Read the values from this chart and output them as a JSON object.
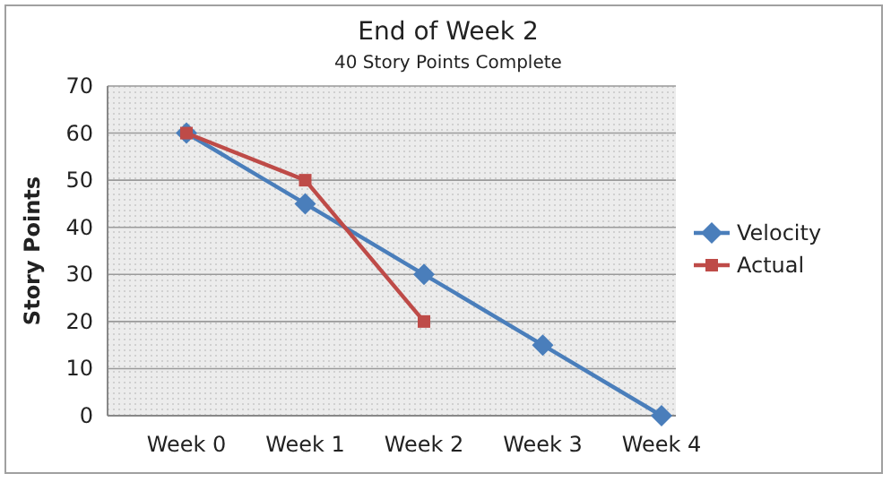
{
  "chart_data": {
    "type": "line",
    "title": "End of Week 2",
    "subtitle": "40 Story Points Complete",
    "ylabel": "Story Points",
    "categories": [
      "Week 0",
      "Week 1",
      "Week 2",
      "Week 3",
      "Week 4"
    ],
    "series": [
      {
        "name": "Velocity",
        "color": "#4a7ebb",
        "marker": "diamond",
        "values": [
          60,
          45,
          30,
          15,
          0
        ]
      },
      {
        "name": "Actual",
        "color": "#be4b48",
        "marker": "square",
        "values": [
          60,
          50,
          20,
          null,
          null
        ]
      }
    ],
    "ylim": [
      0,
      70
    ],
    "yticks": [
      0,
      10,
      20,
      30,
      40,
      50,
      60,
      70
    ],
    "grid": "y",
    "legend": "right",
    "line_style": "solid"
  }
}
